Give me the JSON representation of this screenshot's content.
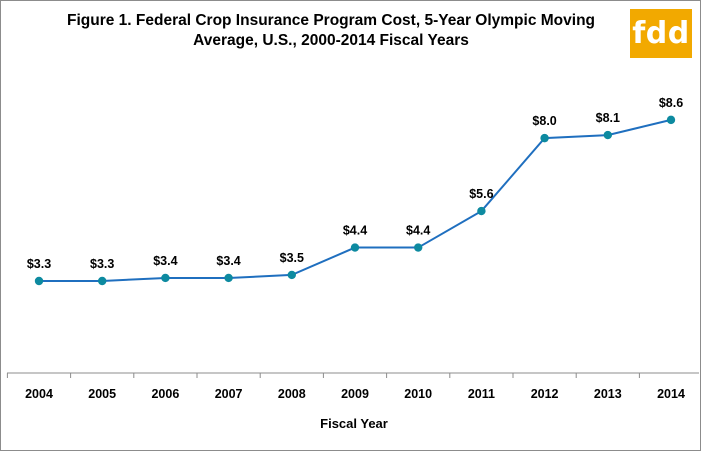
{
  "title_line1": "Figure 1. Federal Crop Insurance Program Cost, 5-Year Olympic Moving",
  "title_line2": "Average, U.S., 2000-2014 Fiscal Years",
  "logo_text": "fdd",
  "colors": {
    "line": "#1f6fbf",
    "marker": "#0d8aa0",
    "logo_bg": "#f2a900"
  },
  "chart_data": {
    "type": "line",
    "title": "Figure 1. Federal Crop Insurance Program Cost, 5-Year Olympic Moving Average, U.S., 2000-2014 Fiscal Years",
    "xlabel": "Fiscal Year",
    "ylabel": "",
    "categories": [
      "2004",
      "2005",
      "2006",
      "2007",
      "2008",
      "2009",
      "2010",
      "2011",
      "2012",
      "2013",
      "2014"
    ],
    "series": [
      {
        "values": [
          3.3,
          3.3,
          3.4,
          3.4,
          3.5,
          4.4,
          4.4,
          5.6,
          8.0,
          8.1,
          8.6
        ],
        "labels": [
          "$3.3",
          "$3.3",
          "$3.4",
          "$3.4",
          "$3.5",
          "$4.4",
          "$4.4",
          "$5.6",
          "$8.0",
          "$8.1",
          "$8.6"
        ]
      }
    ],
    "grid": false,
    "legend": "none"
  }
}
